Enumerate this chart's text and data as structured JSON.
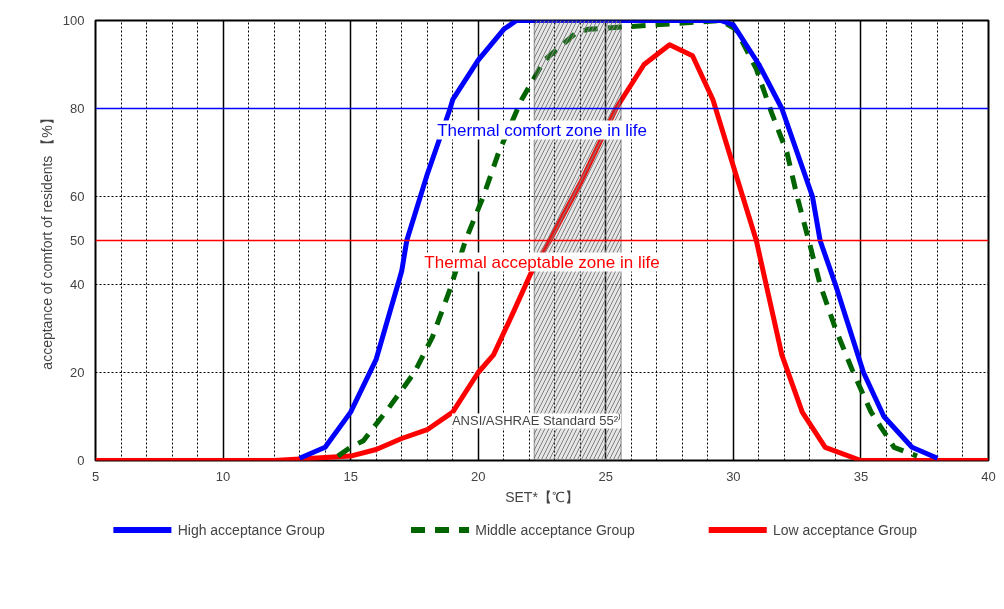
{
  "chart_data": {
    "type": "line",
    "xlabel": "SET*【℃】",
    "ylabel": "acceptance of comfort of residents 【%】",
    "xlim": [
      5,
      40
    ],
    "xticks": [
      5,
      10,
      15,
      20,
      25,
      30,
      35,
      40
    ],
    "ylim": [
      0,
      100
    ],
    "yticks": [
      0,
      20,
      40,
      50,
      60,
      80,
      100
    ],
    "grid": true,
    "legend": "bottom",
    "series": [
      {
        "name": "High acceptance Group",
        "color": "#0000ff",
        "line_style": "solid",
        "x": [
          13,
          14,
          15,
          16,
          17,
          17.2,
          18,
          18.9,
          19,
          20,
          21,
          21.5,
          29.5,
          30,
          31,
          31.9,
          33.1,
          33.4,
          34,
          35.1,
          35.9,
          37,
          38
        ],
        "values": [
          0.5,
          3,
          11,
          23,
          43,
          50,
          65,
          80,
          82,
          91,
          98,
          100,
          100,
          99,
          90,
          80,
          60,
          50,
          40,
          20,
          10,
          3,
          0.5
        ]
      },
      {
        "name": "Middle acceptance Group",
        "color": "#006400",
        "line_style": "dashed",
        "x": [
          14.5,
          15,
          15.5,
          16.5,
          17.5,
          18.2,
          18.9,
          19.5,
          20.2,
          20.8,
          21.7,
          22.6,
          23.8,
          24.3,
          29.5,
          30.1,
          30.9,
          31.5,
          32.1,
          32.5,
          33,
          33.4,
          34,
          34.7,
          35.4,
          36.3,
          37.2
        ],
        "values": [
          1,
          3,
          4.5,
          12,
          20,
          28,
          39,
          50,
          60,
          70,
          82,
          91,
          97,
          98,
          100,
          98,
          89,
          79,
          70,
          60,
          49,
          40,
          30,
          20,
          11,
          3,
          1
        ]
      },
      {
        "name": "Low acceptance Group",
        "color": "#ff0000",
        "line_style": "solid",
        "x": [
          5,
          12,
          15,
          16,
          17,
          18,
          19,
          20,
          20.6,
          21.4,
          22.1,
          22.8,
          24,
          25.4,
          26.5,
          27.5,
          28.4,
          29.2,
          30.1,
          30.9,
          31.4,
          31.9,
          32.7,
          33.6,
          35,
          40
        ],
        "values": [
          0,
          0,
          1,
          2.5,
          5,
          7,
          11,
          20,
          24,
          34,
          43,
          50,
          63,
          80,
          90,
          94.5,
          92,
          82,
          65,
          50,
          37,
          24,
          11,
          3,
          0,
          0
        ]
      }
    ],
    "ref_lines": [
      {
        "axis": "y",
        "value": 80,
        "label": "Thermal comfort zone in life",
        "color": "#0000ff"
      },
      {
        "axis": "y",
        "value": 50,
        "label": "Thermal acceptable zone in life",
        "color": "#ff0000"
      }
    ],
    "bands": [
      {
        "axis": "x",
        "from": 22.2,
        "to": 25.6,
        "label": "ANSI/ASHRAE Standard 55²⁾",
        "color": "#808080"
      }
    ]
  }
}
